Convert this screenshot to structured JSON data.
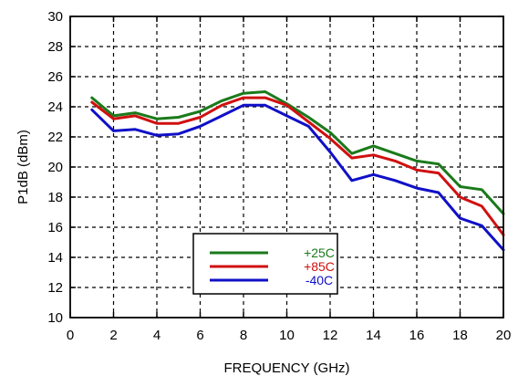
{
  "chart_data": {
    "type": "line",
    "xlabel": "FREQUENCY (GHz)",
    "ylabel": "P1dB (dBm)",
    "xlim": [
      0,
      20
    ],
    "ylim": [
      10,
      30
    ],
    "xticks": [
      0,
      2,
      4,
      6,
      8,
      10,
      12,
      14,
      16,
      18,
      20
    ],
    "yticks": [
      10,
      12,
      14,
      16,
      18,
      20,
      22,
      24,
      26,
      28,
      30
    ],
    "grid": true,
    "legend_position": "bottom-center",
    "series": [
      {
        "name": "+25C",
        "color": "#1a7a1a",
        "x": [
          1,
          2,
          3,
          4,
          5,
          6,
          7,
          8,
          9,
          10,
          11,
          12,
          13,
          14,
          15,
          16,
          17,
          18,
          19,
          20
        ],
        "y": [
          24.6,
          23.4,
          23.6,
          23.2,
          23.3,
          23.7,
          24.4,
          24.9,
          25.0,
          24.2,
          23.3,
          22.3,
          20.9,
          21.4,
          20.9,
          20.4,
          20.2,
          18.7,
          18.5,
          16.9
        ]
      },
      {
        "name": "+85C",
        "color": "#d01010",
        "x": [
          1,
          2,
          3,
          4,
          5,
          6,
          7,
          8,
          9,
          10,
          11,
          12,
          13,
          14,
          15,
          16,
          17,
          18,
          19,
          20
        ],
        "y": [
          24.3,
          23.2,
          23.4,
          22.9,
          22.9,
          23.3,
          24.1,
          24.6,
          24.6,
          24.1,
          23.0,
          21.9,
          20.6,
          20.8,
          20.4,
          19.8,
          19.6,
          18.0,
          17.4,
          15.5
        ]
      },
      {
        "name": "-40C",
        "color": "#1010c8",
        "x": [
          1,
          2,
          3,
          4,
          5,
          6,
          7,
          8,
          9,
          10,
          11,
          12,
          13,
          14,
          15,
          16,
          17,
          18,
          19,
          20
        ],
        "y": [
          23.8,
          22.4,
          22.5,
          22.1,
          22.2,
          22.7,
          23.4,
          24.1,
          24.1,
          23.4,
          22.7,
          21.0,
          19.1,
          19.5,
          19.1,
          18.6,
          18.3,
          16.6,
          16.1,
          14.5
        ]
      }
    ]
  }
}
